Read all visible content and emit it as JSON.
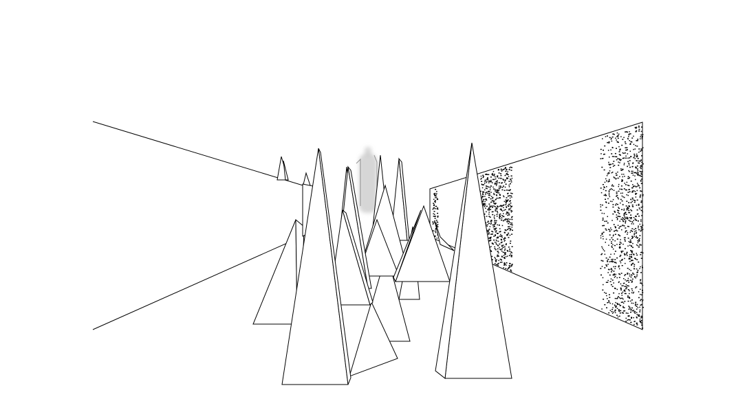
{
  "scene": {
    "background": "#ffffff",
    "stroke": "#000000",
    "fill": "#ffffff",
    "noise_color": "#000000",
    "distant_figure_color": "#c8c8c8"
  }
}
